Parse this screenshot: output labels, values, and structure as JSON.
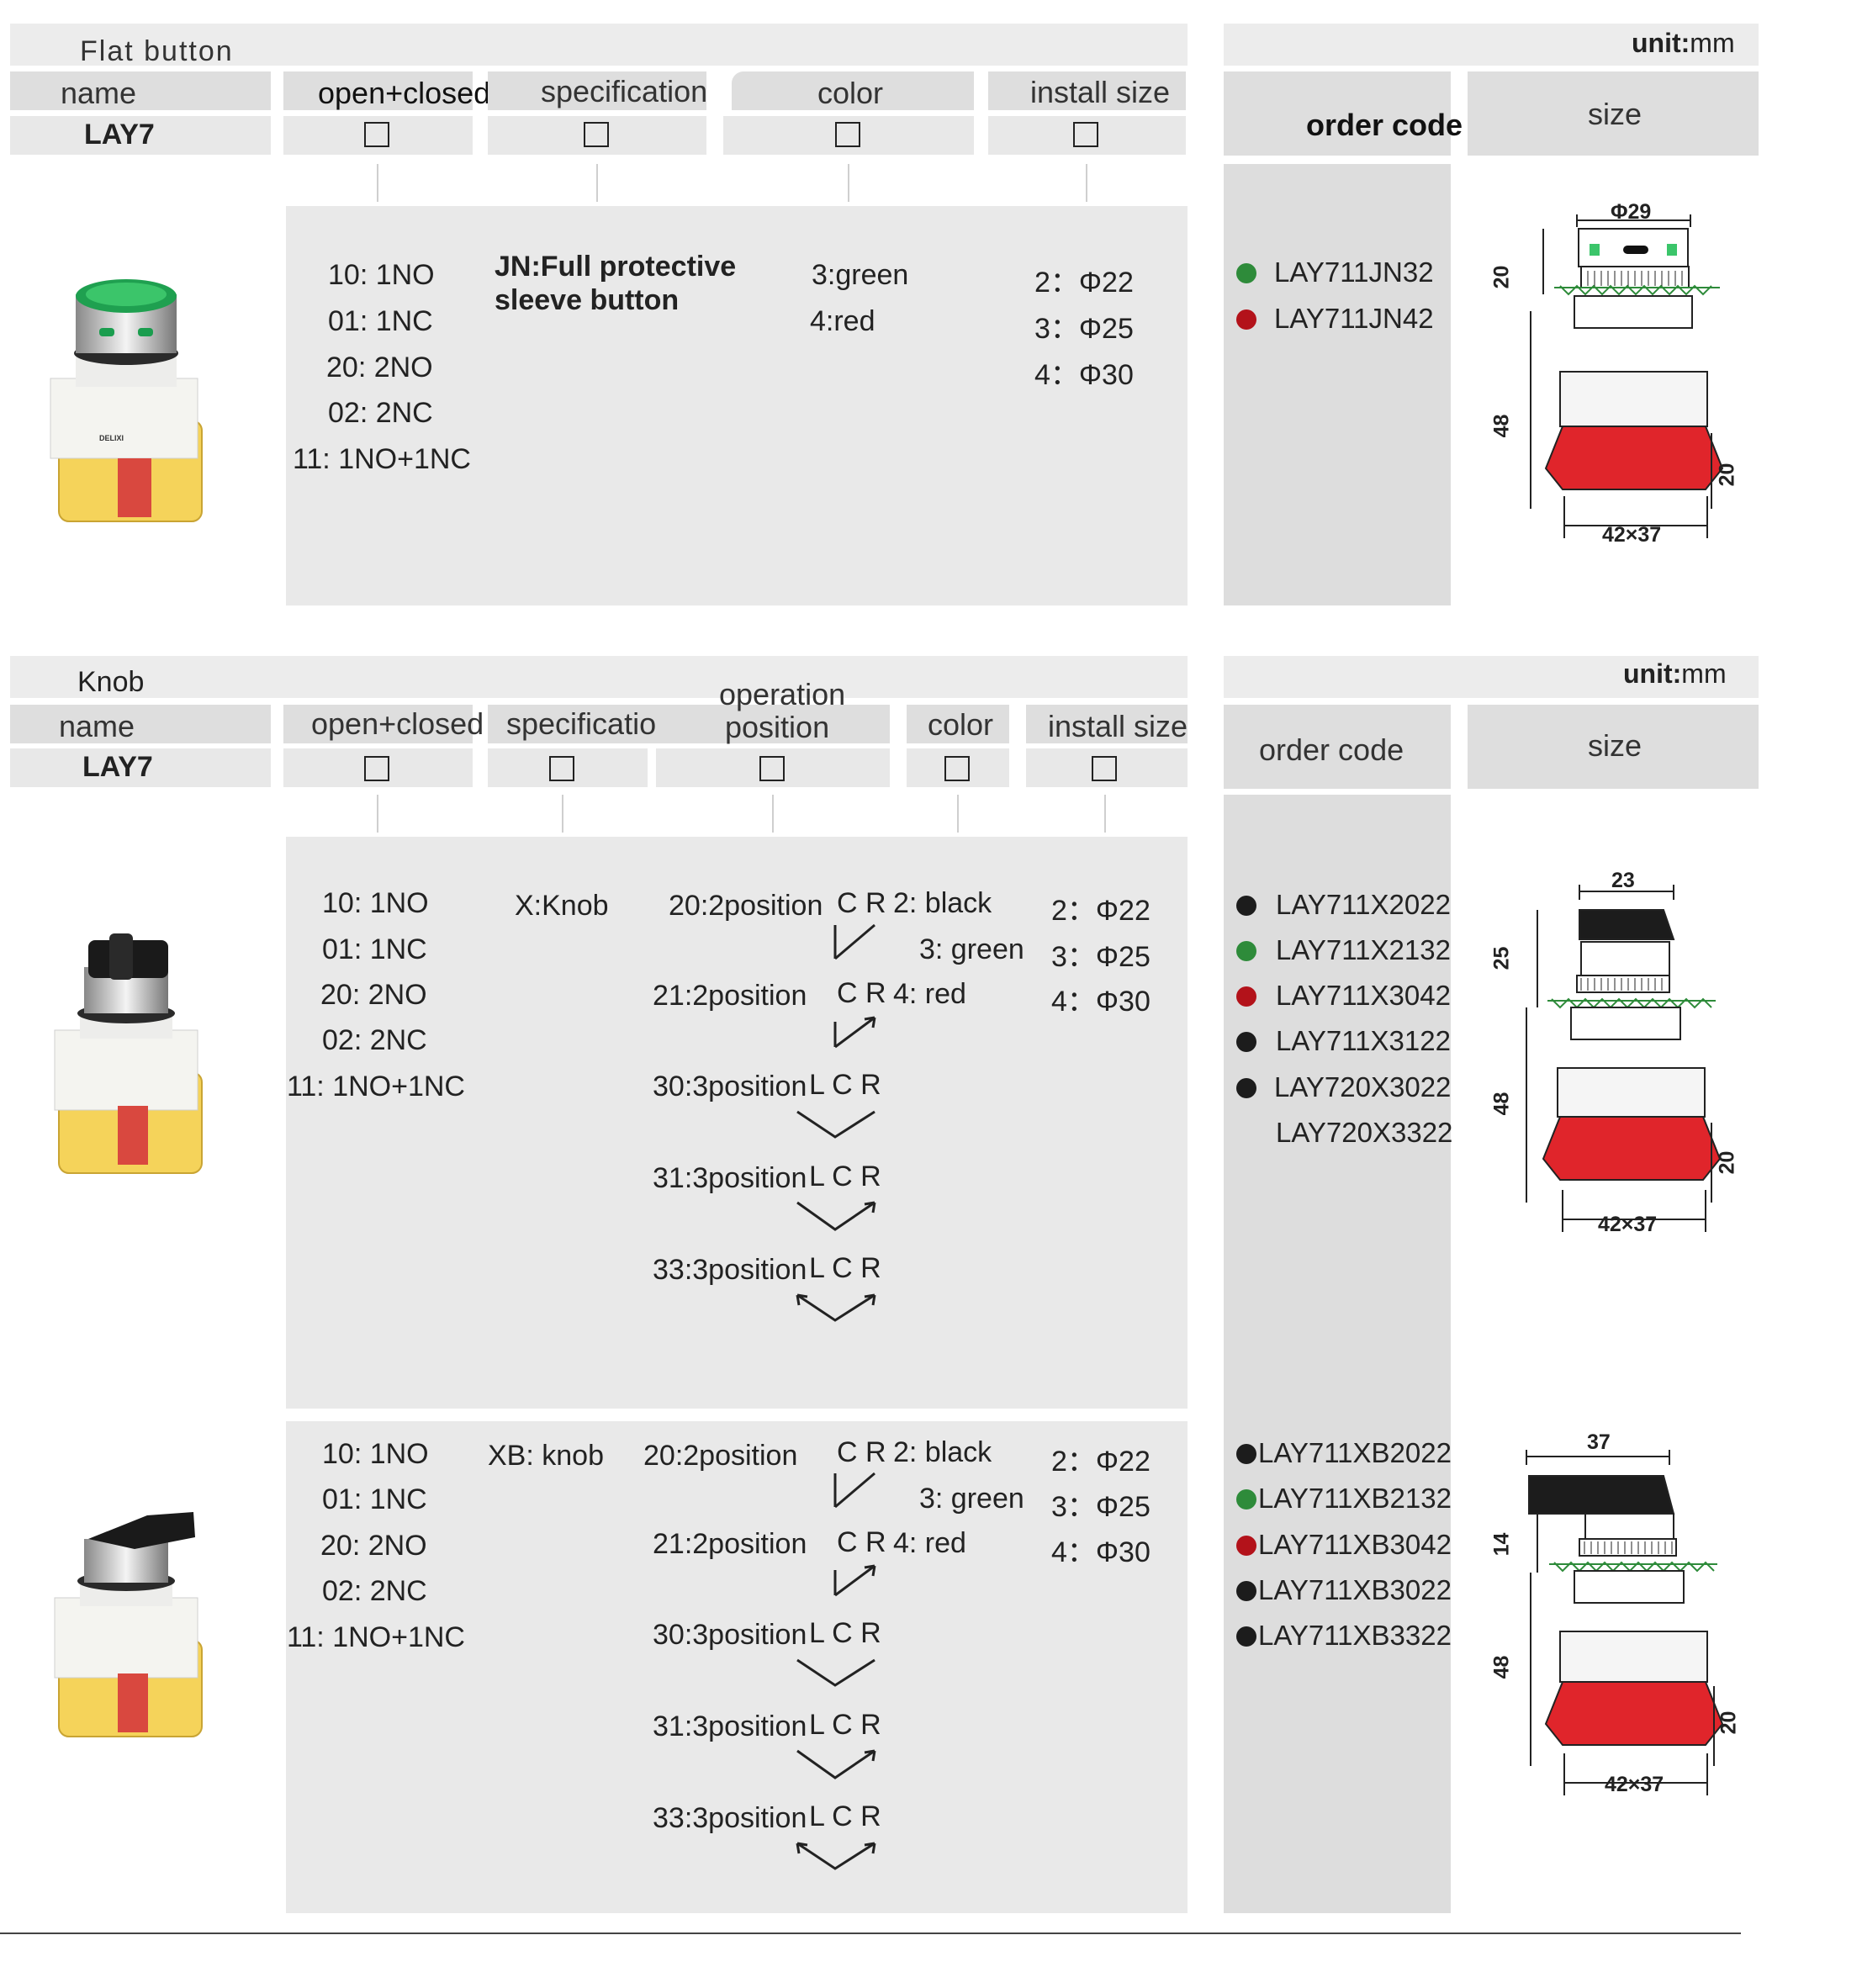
{
  "colors": {
    "green": "#2e8b3a",
    "red": "#b3121a",
    "black": "#1c1c1c",
    "cap_red": "#e0252b"
  },
  "flat": {
    "title": "Flat button",
    "unit_label": "unit:",
    "unit_value": "mm",
    "headers": {
      "name": "name",
      "open_closed": "open+closed",
      "specification": "specification",
      "color": "color",
      "install_size": "install size",
      "order_code": "order code",
      "size": "size"
    },
    "model": "LAY7",
    "contacts": [
      "10:  1NO",
      "01:  1NC",
      "20:  2NO",
      "02:  2NC",
      "11:  1NO+1NC"
    ],
    "spec_line1": "JN:Full protective",
    "spec_line2": "sleeve button",
    "color_opts": [
      "3:green",
      "4:red"
    ],
    "install": [
      "2：Φ22",
      "3：Φ25",
      "4：Φ30"
    ],
    "codes": [
      {
        "code": "LAY711JN32",
        "dot": "green"
      },
      {
        "code": "LAY711JN42",
        "dot": "red"
      }
    ],
    "dims": {
      "top": "Φ29",
      "left_top": "20",
      "left": "48",
      "right": "20",
      "bottom": "42×37"
    }
  },
  "knob": {
    "title": "Knob",
    "unit_label": "unit:",
    "unit_value": "mm",
    "headers": {
      "name": "name",
      "open_closed": "open+closed",
      "specification": "specification",
      "operation_l1": "operation",
      "operation_l2": "position",
      "color": "color",
      "install_size": "install size",
      "order_code": "order code",
      "size": "size"
    },
    "model": "LAY7",
    "contacts": [
      "10:  1NO",
      "01:  1NC",
      "20:  2NO",
      "02:  2NC",
      "11:  1NO+1NC"
    ],
    "spec": "X:Knob",
    "positions": [
      {
        "label": "20:2position",
        "letters": "C R"
      },
      {
        "label": "21:2position",
        "letters": "C R"
      },
      {
        "label": "30:3position",
        "letters": "L C R"
      },
      {
        "label": "31:3position",
        "letters": "L C R"
      },
      {
        "label": "33:3position",
        "letters": "L C R"
      }
    ],
    "color_opts": [
      "2: black",
      "3: green",
      "4: red"
    ],
    "install": [
      "2：Φ22",
      "3：Φ25",
      "4：Φ30"
    ],
    "codes": [
      {
        "code": "LAY711X2022",
        "dot": "black"
      },
      {
        "code": "LAY711X2132",
        "dot": "green"
      },
      {
        "code": "LAY711X3042",
        "dot": "red"
      },
      {
        "code": "LAY711X3122",
        "dot": "black"
      },
      {
        "code": "LAY720X3022",
        "dot": "black"
      },
      {
        "code": "LAY720X3322",
        "dot": ""
      }
    ],
    "dims": {
      "top": "23",
      "left_top": "25",
      "left": "48",
      "right": "20",
      "bottom": "42×37"
    }
  },
  "lever": {
    "contacts": [
      "10:  1NO",
      "01:  1NC",
      "20:  2NO",
      "02:  2NC",
      "11:  1NO+1NC"
    ],
    "spec": "XB: knob",
    "positions": [
      {
        "label": "20:2position",
        "letters": "C R"
      },
      {
        "label": "21:2position",
        "letters": "C R"
      },
      {
        "label": "30:3position",
        "letters": "L C R"
      },
      {
        "label": "31:3position",
        "letters": "L C R"
      },
      {
        "label": "33:3position",
        "letters": "L C R"
      }
    ],
    "color_opts": [
      "2: black",
      "3: green",
      "4: red"
    ],
    "install": [
      "2：Φ22",
      "3：Φ25",
      "4：Φ30"
    ],
    "codes": [
      {
        "code": "LAY711XB2022",
        "dot": "black"
      },
      {
        "code": "LAY711XB2132",
        "dot": "green"
      },
      {
        "code": "LAY711XB3042",
        "dot": "red"
      },
      {
        "code": "LAY711XB3022",
        "dot": "black"
      },
      {
        "code": "LAY711XB3322",
        "dot": "black"
      }
    ],
    "dims": {
      "top": "37",
      "left_top": "14",
      "left": "48",
      "right": "20",
      "bottom": "42×37"
    }
  },
  "product_brand": "DELIXI"
}
